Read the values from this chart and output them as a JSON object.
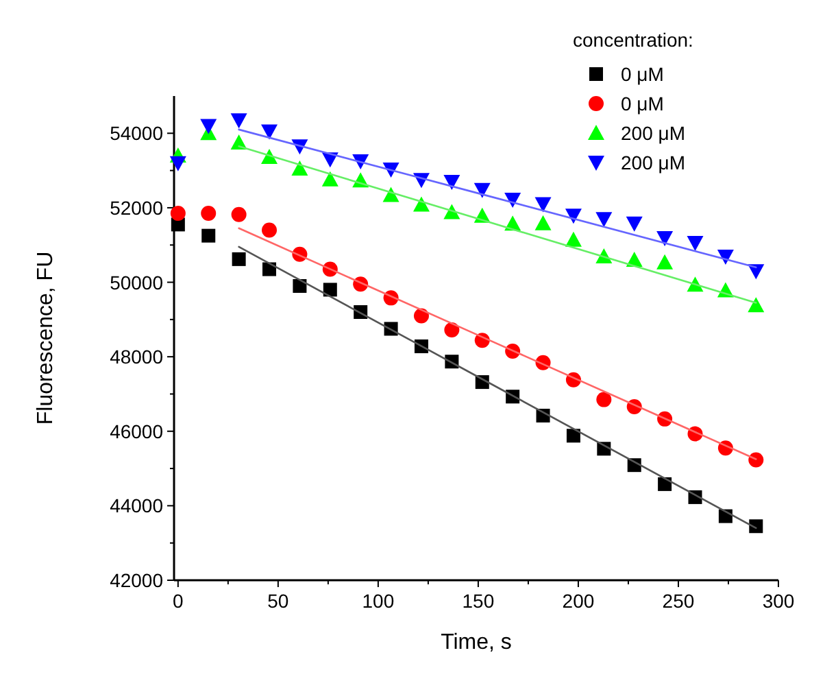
{
  "chart_data": {
    "type": "scatter",
    "xlabel": "Time, s",
    "ylabel": "Fluorescence, FU",
    "legend_title": "concentration:",
    "legend": "top right",
    "grid": false,
    "x": [
      0,
      15.2,
      30.4,
      45.6,
      60.8,
      76,
      91.2,
      106.4,
      121.6,
      136.8,
      152,
      167.2,
      182.4,
      197.6,
      212.8,
      228,
      243.2,
      258.4,
      273.6,
      288.8
    ],
    "xlim": [
      -2,
      300
    ],
    "xticks": [
      0,
      {
        "value": 25,
        "label": null
      },
      50,
      {
        "value": 75,
        "label": null
      },
      100,
      {
        "value": 125,
        "label": null
      },
      150,
      {
        "value": 175,
        "label": null
      },
      200,
      {
        "value": 225,
        "label": null
      },
      250,
      {
        "value": 275,
        "label": null
      },
      300
    ],
    "ylim": [
      42000,
      55000
    ],
    "yticks": [
      42000,
      {
        "value": 43000,
        "label": null
      },
      44000,
      {
        "value": 45000,
        "label": null
      },
      46000,
      {
        "value": 47000,
        "label": null
      },
      48000,
      {
        "value": 49000,
        "label": null
      },
      50000,
      {
        "value": 51000,
        "label": null
      },
      52000,
      {
        "value": 53000,
        "label": null
      },
      54000
    ],
    "series": [
      {
        "name": "0 μM",
        "color": "#000000",
        "marker": "square",
        "values": [
          51550,
          51250,
          50620,
          50350,
          49900,
          49800,
          49200,
          48750,
          48280,
          47870,
          47320,
          46930,
          46420,
          45880,
          45530,
          45090,
          44580,
          44230,
          43720,
          43450
        ]
      },
      {
        "name": "0 μM",
        "color": "#ff0000",
        "marker": "circle",
        "values": [
          51850,
          51850,
          51820,
          51400,
          50750,
          50350,
          49950,
          49580,
          49100,
          48720,
          48440,
          48150,
          47840,
          47380,
          46850,
          46660,
          46330,
          45930,
          45550,
          45230
        ]
      },
      {
        "name": "200 μM",
        "color": "#00ff00",
        "marker": "triangle",
        "values": [
          53400,
          54000,
          53750,
          53360,
          53050,
          52760,
          52730,
          52340,
          52080,
          51880,
          51780,
          51570,
          51580,
          51140,
          50690,
          50600,
          50530,
          49930,
          49780,
          49380
        ]
      },
      {
        "name": "200 μM",
        "color": "#0000ff",
        "marker": "triangle-down",
        "values": [
          53200,
          54200,
          54350,
          54050,
          53650,
          53300,
          53250,
          53030,
          52750,
          52700,
          52480,
          52220,
          52100,
          51790,
          51700,
          51580,
          51190,
          51060,
          50690,
          50300
        ]
      },
      {
        "type": "line",
        "color": "#555555",
        "marker": "none",
        "x": [
          30.4,
          152,
          288.8
        ],
        "values": [
          50950,
          47400,
          43400
        ]
      },
      {
        "type": "line",
        "color": "#ff6666",
        "marker": "none",
        "x": [
          30.4,
          152,
          288.8
        ],
        "values": [
          51450,
          48530,
          45250
        ]
      },
      {
        "type": "line",
        "color": "#66ee66",
        "marker": "none",
        "x": [
          30.4,
          152,
          288.8
        ],
        "values": [
          53650,
          51670,
          49450
        ]
      },
      {
        "type": "line",
        "color": "#6666ff",
        "marker": "none",
        "x": [
          30.4,
          152,
          288.8
        ],
        "values": [
          54100,
          52360,
          50400
        ]
      }
    ]
  }
}
